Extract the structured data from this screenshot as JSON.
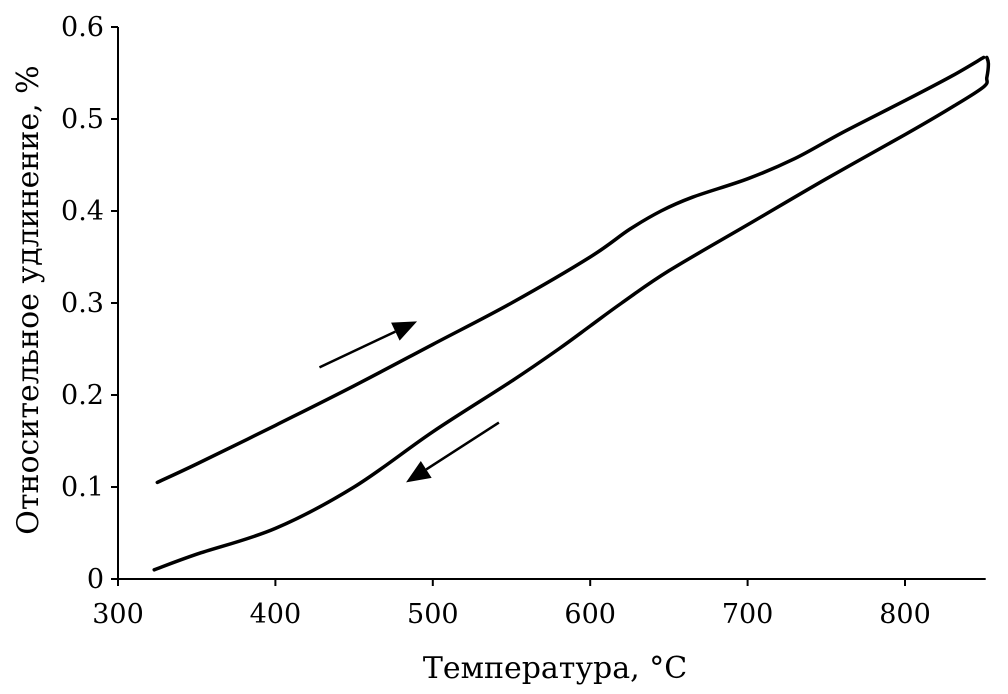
{
  "chart_data": {
    "type": "line",
    "title": "",
    "xlabel": "Температура, °C",
    "ylabel": "Относительное удлинение, %",
    "xlim": [
      300,
      850
    ],
    "ylim": [
      0,
      0.6
    ],
    "x_ticks": [
      300,
      400,
      500,
      600,
      700,
      800
    ],
    "x_tick_labels": [
      "300",
      "400",
      "500",
      "600",
      "700",
      "800"
    ],
    "y_ticks": [
      0,
      0.1,
      0.2,
      0.3,
      0.4,
      0.5,
      0.6
    ],
    "y_tick_labels": [
      "0",
      "0.1",
      "0.2",
      "0.3",
      "0.4",
      "0.5",
      "0.6"
    ],
    "grid": false,
    "legend": "none",
    "line_color": "#000000",
    "series": [
      {
        "direction": "heating",
        "x": [
          325,
          350,
          400,
          450,
          500,
          550,
          600,
          625,
          645,
          665,
          700,
          730,
          760,
          800,
          830,
          850
        ],
        "y": [
          0.105,
          0.125,
          0.167,
          0.21,
          0.255,
          0.3,
          0.35,
          0.38,
          0.4,
          0.415,
          0.435,
          0.457,
          0.485,
          0.52,
          0.547,
          0.567
        ]
      },
      {
        "direction": "cooling",
        "x": [
          852,
          853,
          852,
          850,
          830,
          800,
          750,
          700,
          650,
          620,
          600,
          580,
          550,
          500,
          450,
          400,
          350,
          323
        ],
        "y": [
          0.567,
          0.56,
          0.545,
          0.535,
          0.513,
          0.483,
          0.435,
          0.385,
          0.335,
          0.3,
          0.275,
          0.25,
          0.215,
          0.16,
          0.1,
          0.055,
          0.027,
          0.01
        ]
      }
    ],
    "annotations": [
      {
        "name": "heating-arrow",
        "from": [
          428,
          0.23
        ],
        "to": [
          490,
          0.28
        ]
      },
      {
        "name": "cooling-arrow",
        "from": [
          542,
          0.17
        ],
        "to": [
          483,
          0.105
        ]
      }
    ]
  }
}
